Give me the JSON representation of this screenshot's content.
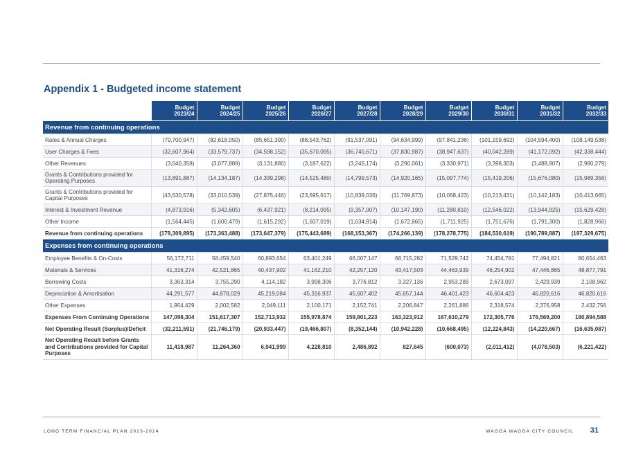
{
  "title": "Appendix 1 - Budgeted income statement",
  "columns": [
    [
      "Budget",
      "2023/24"
    ],
    [
      "Budget",
      "2024/25"
    ],
    [
      "Budget",
      "2025/26"
    ],
    [
      "Budget",
      "2026/27"
    ],
    [
      "Budget",
      "2027/28"
    ],
    [
      "Budget",
      "2028/29"
    ],
    [
      "Budget",
      "2029/30"
    ],
    [
      "Budget",
      "2030/31"
    ],
    [
      "Budget",
      "2031/32"
    ],
    [
      "Budget",
      "2032/33"
    ]
  ],
  "sections": [
    {
      "heading": "Revenue from continuing operations",
      "rows": [
        {
          "label": "Rates & Annual Charges",
          "values": [
            "(79,700,947)",
            "(82,618,050)",
            "(85,651,390)",
            "(88,543,762)",
            "(91,537,091)",
            "(94,634,999)",
            "(97,841,236)",
            "(101,159,692)",
            "(104,594,400)",
            "(108,149,538)"
          ]
        },
        {
          "label": "User Charges & Fees",
          "values": [
            "(32,607,964)",
            "(33,579,737)",
            "(34,598,152)",
            "(35,670,095)",
            "(36,740,671)",
            "(37,830,987)",
            "(38,947,637)",
            "(40,042,289)",
            "(41,172,092)",
            "(42,338,444)"
          ]
        },
        {
          "label": "Other Revenues",
          "values": [
            "(3,040,358)",
            "(3,077,889)",
            "(3,131,880)",
            "(3,187,622)",
            "(3,245,174)",
            "(3,290,061)",
            "(3,330,971)",
            "(3,398,303)",
            "(3,488,907)",
            "(2,980,279)"
          ]
        },
        {
          "label": "Grants & Contributions provided for Operating Purposes",
          "values": [
            "(13,891,887)",
            "(14,134,187)",
            "(14,339,298)",
            "(14,525,480)",
            "(14,799,573)",
            "(14,920,165)",
            "(15,097,774)",
            "(15,419,206)",
            "(15,676,080)",
            "(15,989,356)"
          ]
        },
        {
          "label": "Grants & Contributions provided for Capital Purposes",
          "values": [
            "(43,630,578)",
            "(33,010,539)",
            "(27,875,446)",
            "(23,695,617)",
            "(10,839,036)",
            "(11,769,873)",
            "(10,068,423)",
            "(10,213,431)",
            "(10,142,183)",
            "(10,413,665)"
          ]
        },
        {
          "label": "Interest & Investment Revenue",
          "values": [
            "(4,873,916)",
            "(5,342,605)",
            "(6,437,921)",
            "(8,214,095)",
            "(9,357,007)",
            "(10,147,190)",
            "(11,280,810)",
            "(12,546,022)",
            "(13,944,925)",
            "(15,629,428)"
          ]
        },
        {
          "label": "Other Income",
          "values": [
            "(1,564,445)",
            "(1,600,479)",
            "(1,615,292)",
            "(1,607,019)",
            "(1,634,814)",
            "(1,672,865)",
            "(1,711,925)",
            "(1,751,676)",
            "(1,791,300)",
            "(1,828,966)"
          ]
        },
        {
          "label": "Revenue from continuing operations",
          "total": true,
          "values": [
            "(179,309,895)",
            "(173,363,488)",
            "(173,647,379)",
            "(175,443,689)",
            "(168,153,367)",
            "(174,266,139)",
            "(178,278,775)",
            "(184,530,619)",
            "(190,789,887)",
            "(197,329,675)"
          ]
        }
      ]
    },
    {
      "heading": "Expenses from continuing operations",
      "rows": [
        {
          "label": "Employee Benefits & On-Costs",
          "values": [
            "56,172,711",
            "58,459,540",
            "60,893,654",
            "63,401,249",
            "66,007,147",
            "68,715,282",
            "71,529,742",
            "74,454,781",
            "77,494,821",
            "80,654,463"
          ]
        },
        {
          "label": "Materials & Services",
          "values": [
            "41,316,274",
            "42,521,865",
            "40,437,902",
            "41,162,210",
            "42,257,120",
            "43,417,503",
            "44,463,939",
            "46,254,902",
            "47,446,865",
            "48,877,791"
          ]
        },
        {
          "label": "Borrowing Costs",
          "values": [
            "3,363,314",
            "3,755,290",
            "4,114,182",
            "3,998,306",
            "3,776,812",
            "3,327,136",
            "2,953,289",
            "2,673,097",
            "2,429,939",
            "2,108,962"
          ]
        },
        {
          "label": "Depreciation & Amortisation",
          "values": [
            "44,291,577",
            "44,878,029",
            "45,219,084",
            "45,316,937",
            "45,607,402",
            "45,657,144",
            "46,401,423",
            "46,604,423",
            "46,820,616",
            "46,820,616"
          ]
        },
        {
          "label": "Other Expenses",
          "values": [
            "1,954,429",
            "2,002,582",
            "2,049,111",
            "2,100,171",
            "2,152,741",
            "2,206,847",
            "2,261,886",
            "2,318,574",
            "2,376,958",
            "2,432,756"
          ]
        },
        {
          "label": "Expenses From Continuing Operations",
          "total": true,
          "values": [
            "147,098,304",
            "151,617,307",
            "152,713,932",
            "155,978,874",
            "159,801,223",
            "163,323,912",
            "167,610,279",
            "172,305,776",
            "176,569,200",
            "180,894,588"
          ]
        },
        {
          "label": "Net Operating Result (Surplus)/Deficit",
          "total": true,
          "values": [
            "(32,211,591)",
            "(21,746,179)",
            "(20,933,447)",
            "(19,466,807)",
            "(8,352,144)",
            "(10,942,228)",
            "(10,668,495)",
            "(12,224,843)",
            "(14,220,667)",
            "(16,635,087)"
          ]
        },
        {
          "label": "Net Operating Result before Grants and Contributions provided for Capital Purposes",
          "total": true,
          "values": [
            "11,418,987",
            "11,264,360",
            "6,941,999",
            "4,228,810",
            "2,486,892",
            "827,645",
            "(600,073)",
            "(2,011,412)",
            "(4,078,503)",
            "(6,221,422)"
          ]
        }
      ]
    }
  ],
  "footer": {
    "left": "LONG TERM FINANCIAL PLAN 2023-2024",
    "right": "WAGGA WAGGA CITY COUNCIL",
    "page_number": "31"
  }
}
